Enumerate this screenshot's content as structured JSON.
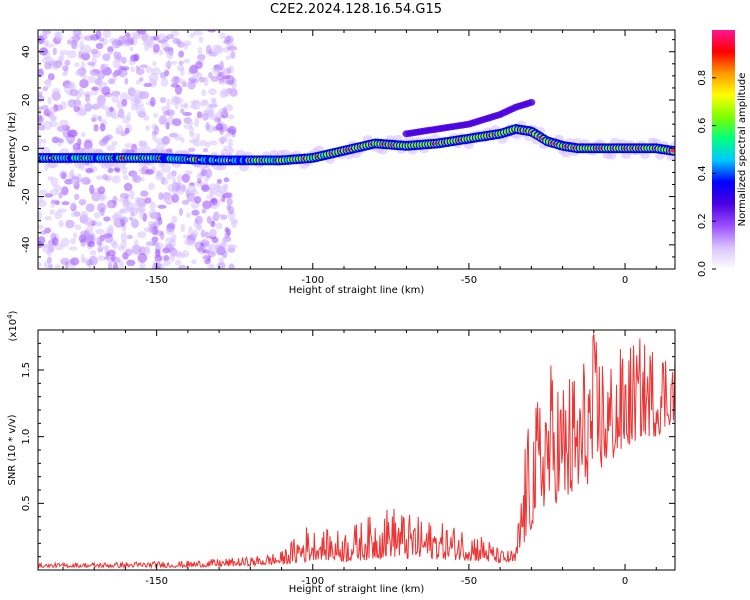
{
  "title": "C2E2.2024.128.16.54.G15",
  "chart_data": [
    {
      "type": "heatmap",
      "xlabel": "Height of straight line (km)",
      "ylabel": "Frequency (Hz)",
      "xlim": [
        -188,
        16
      ],
      "ylim": [
        -50,
        49
      ],
      "xticks": [
        -150,
        -100,
        -50,
        0
      ],
      "yticks": [
        -40,
        -20,
        0,
        20,
        40
      ],
      "colorbar": {
        "label": "Normalized spectral amplitude",
        "range": [
          0,
          1
        ],
        "ticks": [
          "0.0",
          "0.2",
          "0.4",
          "0.6",
          "0.8"
        ],
        "colormap": [
          "#ffffff",
          "#d9c2ff",
          "#9a4dff",
          "#4a00e0",
          "#0000ff",
          "#00c8ff",
          "#00ff7f",
          "#7fff00",
          "#ffff00",
          "#ff9900",
          "#ff0000",
          "#ff1493"
        ]
      },
      "ridge": {
        "x": [
          -188,
          -170,
          -150,
          -130,
          -110,
          -100,
          -90,
          -80,
          -70,
          -60,
          -50,
          -40,
          -35,
          -30,
          -25,
          -20,
          -15,
          -10,
          0,
          10,
          15
        ],
        "y": [
          -4,
          -4,
          -4,
          -5,
          -5,
          -4,
          -1,
          2,
          1,
          2,
          4,
          6,
          8,
          7,
          3,
          1,
          0,
          0,
          0,
          0,
          -1
        ]
      },
      "upper_branch": {
        "x": [
          -70,
          -60,
          -50,
          -45,
          -40,
          -35,
          -30
        ],
        "y": [
          6,
          8,
          10,
          12,
          14,
          17,
          19
        ]
      }
    },
    {
      "type": "line",
      "xlabel": "Height of straight line (km)",
      "ylabel": "SNR (10 * v/v)",
      "yscale_label": "(x10",
      "yscale_exp": "4",
      "xlim": [
        -188,
        16
      ],
      "ylim": [
        0,
        1.8
      ],
      "xticks": [
        -150,
        -100,
        -50,
        0
      ],
      "yticks": [
        0.5,
        1.0,
        1.5
      ],
      "ytick_labels": [
        "0.5",
        "1.0",
        "1.5"
      ],
      "color": "#ee3333",
      "envelope": {
        "x": [
          -188,
          -160,
          -140,
          -120,
          -110,
          -102,
          -98,
          -90,
          -80,
          -75,
          -70,
          -60,
          -50,
          -45,
          -40,
          -35,
          -32,
          -28,
          -25,
          -20,
          -15,
          -10,
          -5,
          0,
          5,
          10,
          15
        ],
        "base": [
          0.02,
          0.02,
          0.02,
          0.03,
          0.04,
          0.06,
          0.08,
          0.06,
          0.08,
          0.1,
          0.08,
          0.08,
          0.07,
          0.06,
          0.05,
          0.05,
          0.2,
          0.4,
          0.5,
          0.5,
          0.55,
          0.7,
          0.8,
          0.9,
          1.0,
          1.0,
          1.1
        ],
        "amp": [
          0.03,
          0.04,
          0.05,
          0.07,
          0.1,
          0.28,
          0.22,
          0.25,
          0.35,
          0.4,
          0.35,
          0.28,
          0.25,
          0.2,
          0.1,
          0.1,
          0.8,
          0.9,
          1.1,
          1.0,
          1.0,
          1.1,
          0.8,
          0.8,
          0.75,
          0.7,
          0.6
        ]
      }
    }
  ]
}
